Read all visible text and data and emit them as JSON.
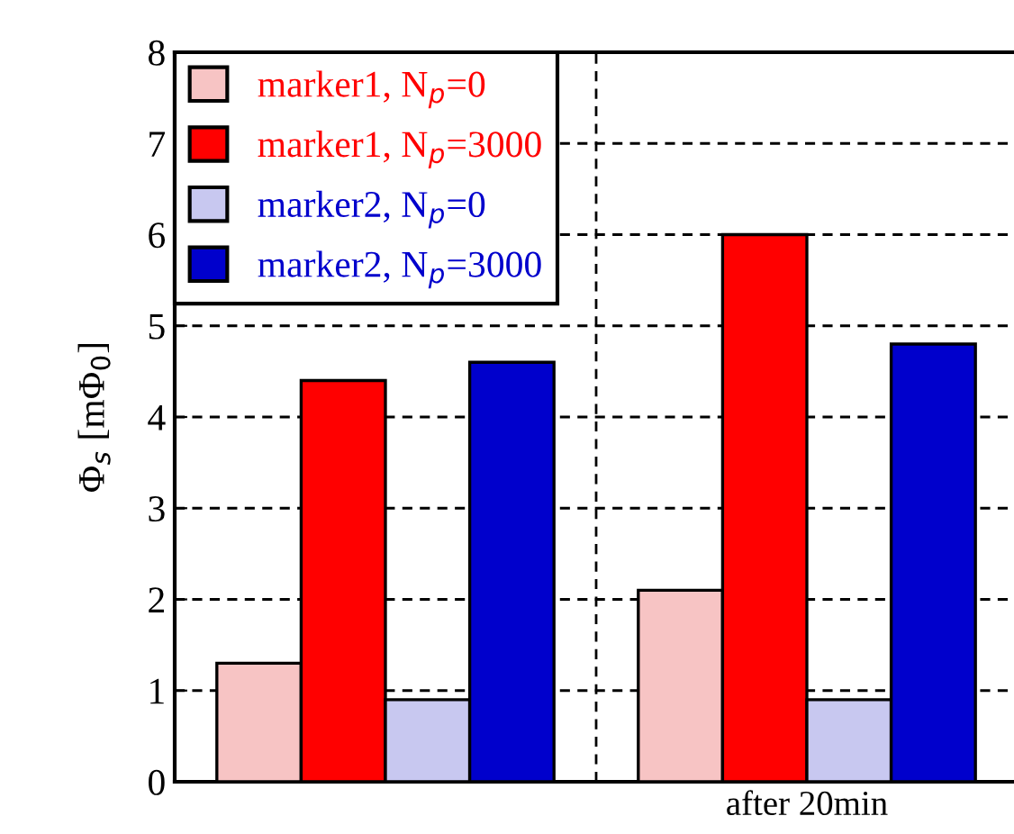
{
  "chart_data": {
    "type": "bar",
    "ylabel": "Φ$_{s}$ [mΦ$_{0}$]",
    "categories": [
      null,
      "after 20min"
    ],
    "series": [
      {
        "name": "marker1, N$_{p}$=0",
        "color": "#f7c4c4",
        "values": [
          1.3,
          2.1
        ]
      },
      {
        "name": "marker1, N$_{p}$=3000",
        "color": "#ff0000",
        "values": [
          4.4,
          6.0
        ]
      },
      {
        "name": "marker2, N$_{p}$=0",
        "color": "#c8c8f0",
        "values": [
          0.9,
          0.9
        ]
      },
      {
        "name": "marker2, N$_{p}$=3000",
        "color": "#0000cc",
        "values": [
          4.6,
          4.8
        ]
      }
    ],
    "ylim": [
      0,
      8
    ],
    "yticks": [
      0,
      1,
      2,
      3,
      4,
      5,
      6,
      7,
      8
    ],
    "grid": true,
    "legend": "top left"
  }
}
